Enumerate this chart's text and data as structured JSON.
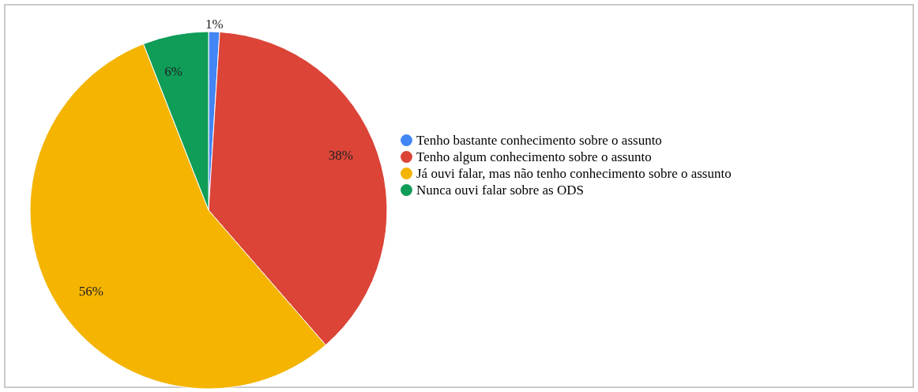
{
  "chart_data": {
    "type": "pie",
    "categories": [
      "Tenho bastante conhecimento sobre o assunto",
      "Tenho algum conhecimento sobre o assunto",
      "Já ouvi falar, mas não tenho conhecimento sobre o assunto",
      "Nunca ouvi falar sobre as ODS"
    ],
    "values": [
      1,
      38,
      56,
      6
    ],
    "colors": [
      "#4285f4",
      "#db4437",
      "#f4b400",
      "#0f9d58"
    ],
    "value_labels": [
      "1%",
      "38%",
      "56%",
      "6%"
    ],
    "legend": "right"
  }
}
